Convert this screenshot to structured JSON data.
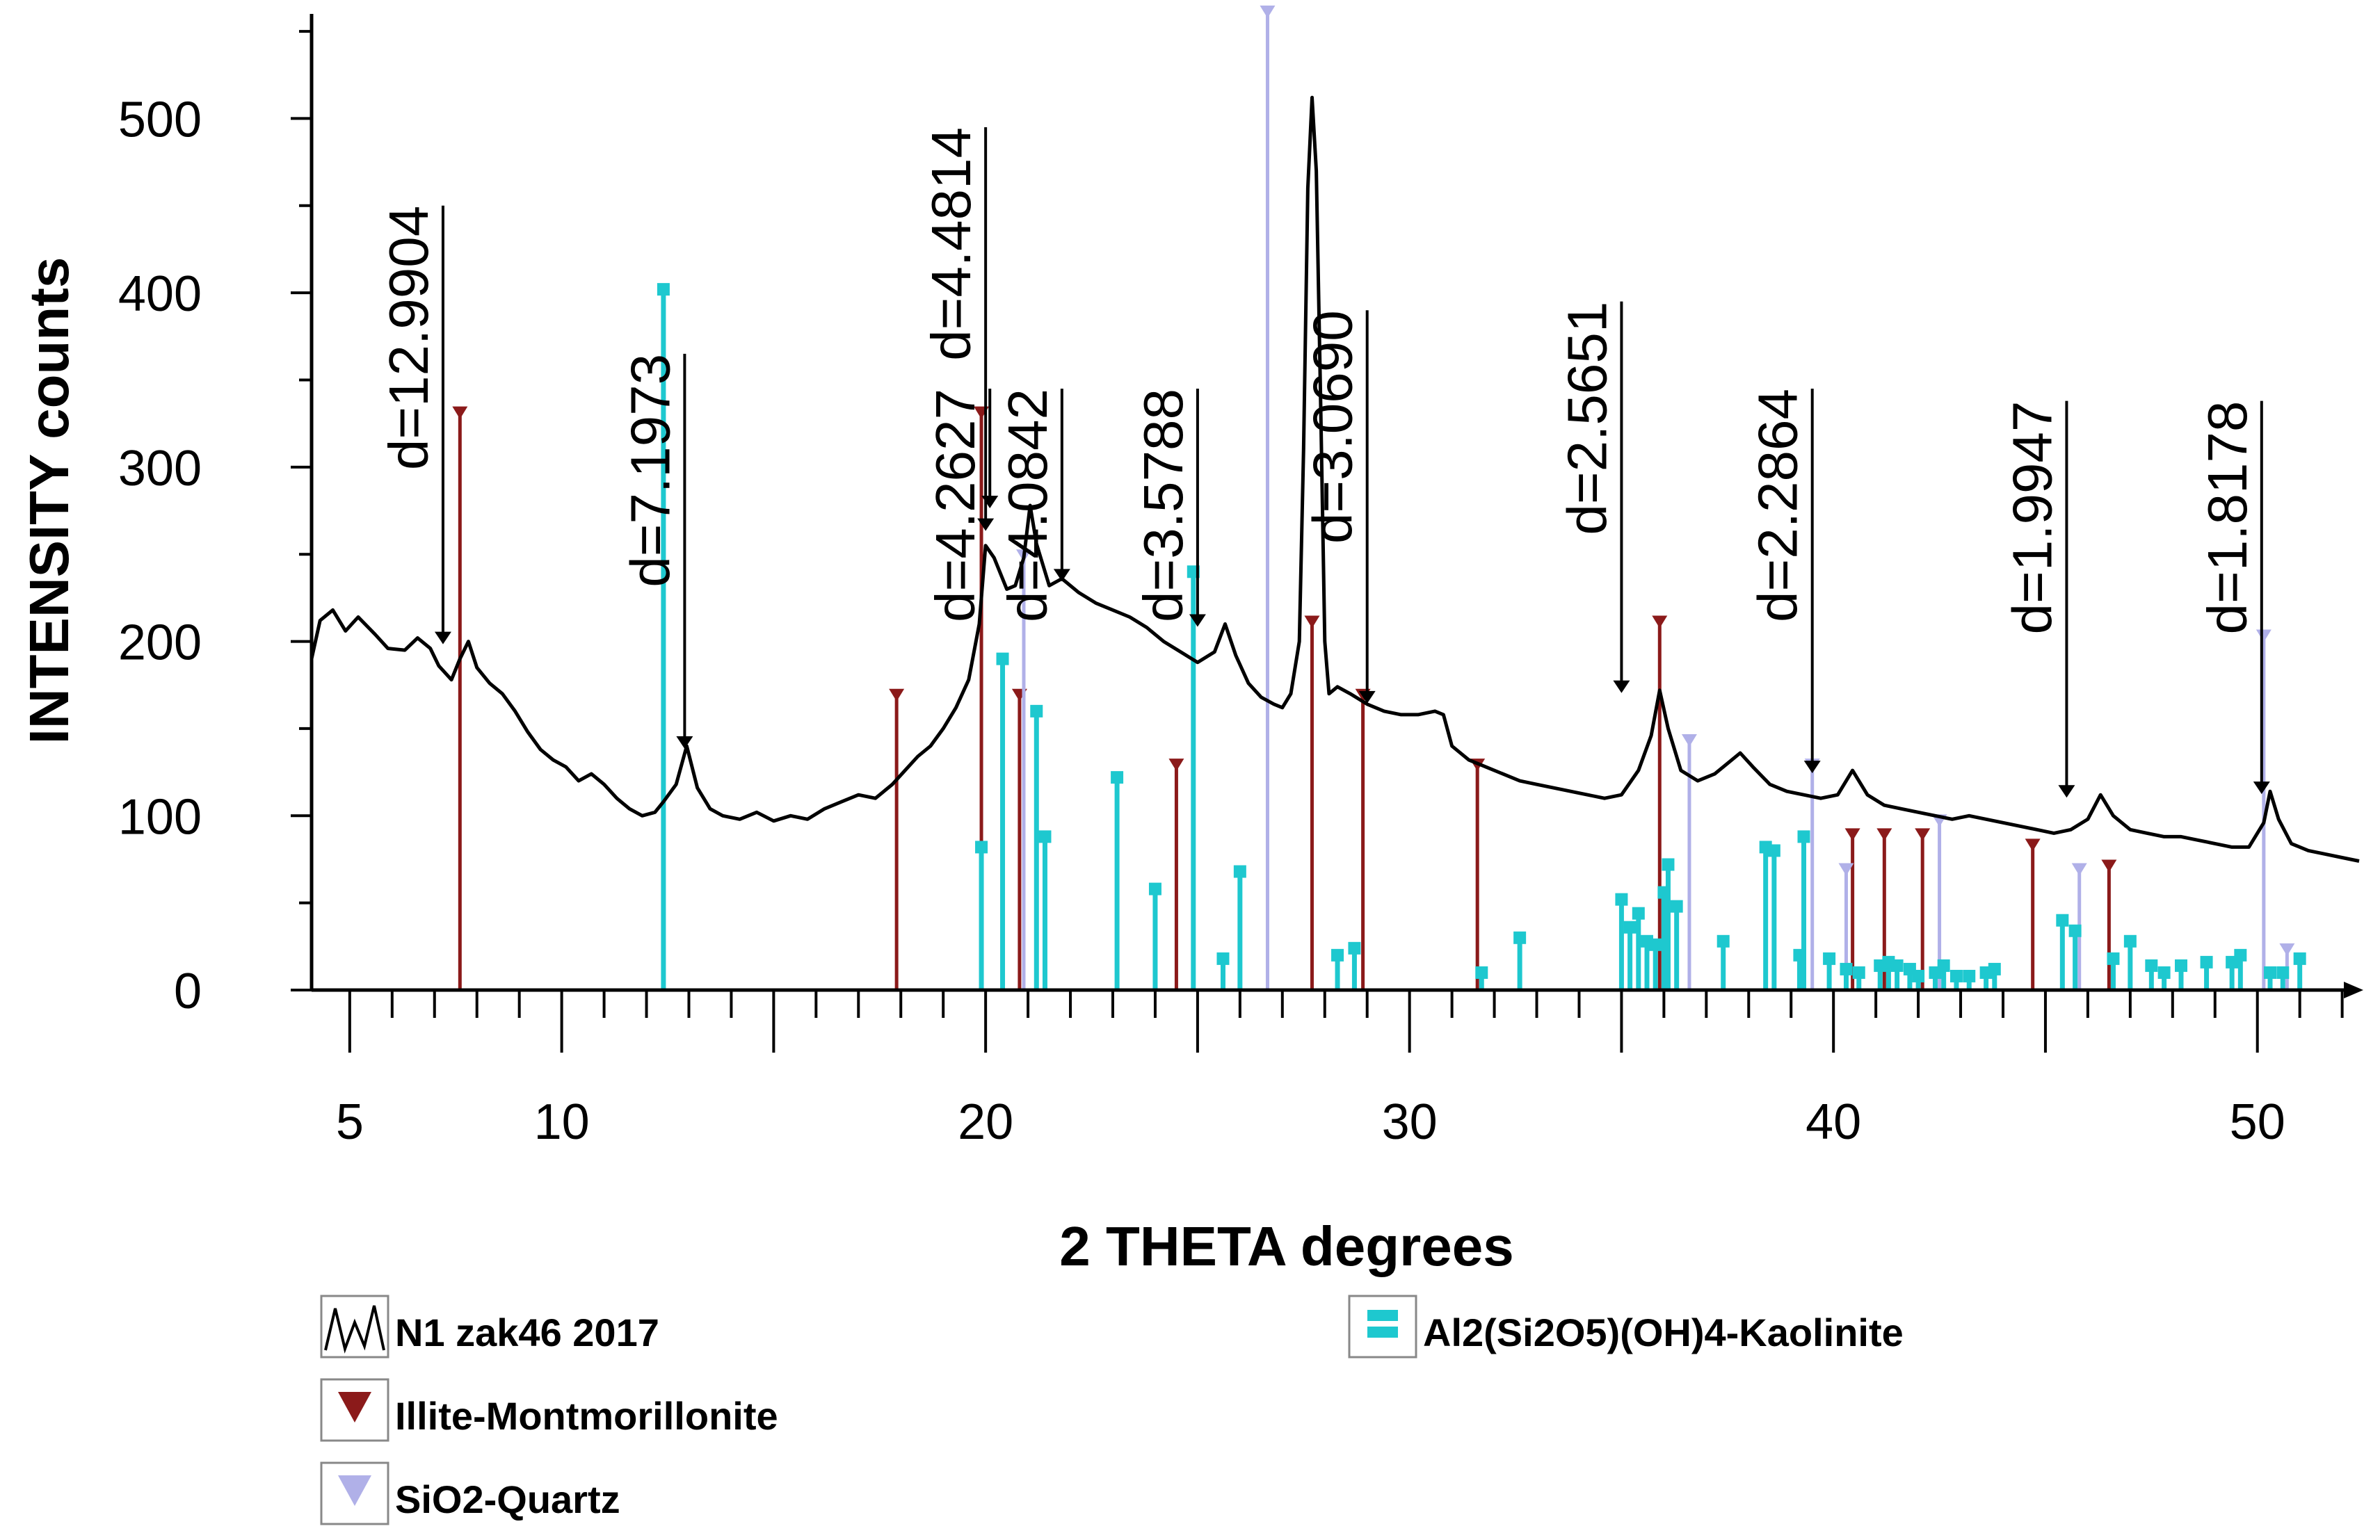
{
  "chart_data": {
    "type": "line",
    "xlabel": "2 THETA degrees",
    "ylabel": "INTENSITY counts",
    "xlim": [
      4.1,
      52.4
    ],
    "ylim": [
      0,
      560
    ],
    "x_ticks": [
      5,
      10,
      20,
      30,
      40,
      50
    ],
    "y_ticks": [
      0,
      100,
      200,
      300,
      400,
      500
    ],
    "pattern": {
      "name": "N1 zak46 2017",
      "color": "#000000",
      "points": [
        [
          4.1,
          190
        ],
        [
          4.3,
          212
        ],
        [
          4.6,
          218
        ],
        [
          4.9,
          206
        ],
        [
          5.2,
          214
        ],
        [
          5.6,
          204
        ],
        [
          5.9,
          196
        ],
        [
          6.3,
          195
        ],
        [
          6.6,
          202
        ],
        [
          6.9,
          196
        ],
        [
          7.1,
          186
        ],
        [
          7.4,
          178
        ],
        [
          7.6,
          190
        ],
        [
          7.8,
          200
        ],
        [
          8.0,
          185
        ],
        [
          8.3,
          176
        ],
        [
          8.6,
          170
        ],
        [
          8.9,
          160
        ],
        [
          9.2,
          148
        ],
        [
          9.5,
          138
        ],
        [
          9.8,
          132
        ],
        [
          10.1,
          128
        ],
        [
          10.4,
          120
        ],
        [
          10.7,
          124
        ],
        [
          11.0,
          118
        ],
        [
          11.3,
          110
        ],
        [
          11.6,
          104
        ],
        [
          11.9,
          100
        ],
        [
          12.2,
          102
        ],
        [
          12.4,
          108
        ],
        [
          12.7,
          118
        ],
        [
          12.95,
          140
        ],
        [
          13.2,
          116
        ],
        [
          13.5,
          104
        ],
        [
          13.8,
          100
        ],
        [
          14.2,
          98
        ],
        [
          14.6,
          102
        ],
        [
          15.0,
          97
        ],
        [
          15.4,
          100
        ],
        [
          15.8,
          98
        ],
        [
          16.2,
          104
        ],
        [
          16.6,
          108
        ],
        [
          17.0,
          112
        ],
        [
          17.4,
          110
        ],
        [
          17.8,
          118
        ],
        [
          18.1,
          126
        ],
        [
          18.4,
          134
        ],
        [
          18.7,
          140
        ],
        [
          19.0,
          150
        ],
        [
          19.3,
          162
        ],
        [
          19.6,
          178
        ],
        [
          19.85,
          210
        ],
        [
          20.0,
          255
        ],
        [
          20.2,
          248
        ],
        [
          20.5,
          230
        ],
        [
          20.7,
          232
        ],
        [
          20.9,
          248
        ],
        [
          21.05,
          278
        ],
        [
          21.2,
          256
        ],
        [
          21.5,
          232
        ],
        [
          21.8,
          236
        ],
        [
          22.2,
          228
        ],
        [
          22.6,
          222
        ],
        [
          23.0,
          218
        ],
        [
          23.4,
          214
        ],
        [
          23.8,
          208
        ],
        [
          24.2,
          200
        ],
        [
          24.6,
          194
        ],
        [
          25.0,
          188
        ],
        [
          25.4,
          194
        ],
        [
          25.65,
          210
        ],
        [
          25.9,
          192
        ],
        [
          26.2,
          176
        ],
        [
          26.5,
          168
        ],
        [
          26.8,
          164
        ],
        [
          27.0,
          162
        ],
        [
          27.2,
          170
        ],
        [
          27.4,
          200
        ],
        [
          27.5,
          310
        ],
        [
          27.6,
          460
        ],
        [
          27.7,
          512
        ],
        [
          27.8,
          470
        ],
        [
          27.9,
          340
        ],
        [
          28.0,
          200
        ],
        [
          28.1,
          170
        ],
        [
          28.3,
          174
        ],
        [
          28.6,
          170
        ],
        [
          29.0,
          164
        ],
        [
          29.4,
          160
        ],
        [
          29.8,
          158
        ],
        [
          30.2,
          158
        ],
        [
          30.6,
          160
        ],
        [
          30.8,
          158
        ],
        [
          31.0,
          140
        ],
        [
          31.4,
          132
        ],
        [
          31.8,
          128
        ],
        [
          32.2,
          124
        ],
        [
          32.6,
          120
        ],
        [
          33.0,
          118
        ],
        [
          33.4,
          116
        ],
        [
          33.8,
          114
        ],
        [
          34.2,
          112
        ],
        [
          34.6,
          110
        ],
        [
          35.0,
          112
        ],
        [
          35.4,
          126
        ],
        [
          35.7,
          146
        ],
        [
          35.9,
          172
        ],
        [
          36.1,
          150
        ],
        [
          36.4,
          126
        ],
        [
          36.8,
          120
        ],
        [
          37.2,
          124
        ],
        [
          37.5,
          130
        ],
        [
          37.8,
          136
        ],
        [
          38.1,
          128
        ],
        [
          38.5,
          118
        ],
        [
          38.9,
          114
        ],
        [
          39.3,
          112
        ],
        [
          39.7,
          110
        ],
        [
          40.1,
          112
        ],
        [
          40.45,
          126
        ],
        [
          40.8,
          112
        ],
        [
          41.2,
          106
        ],
        [
          41.6,
          104
        ],
        [
          42.0,
          102
        ],
        [
          42.4,
          100
        ],
        [
          42.8,
          98
        ],
        [
          43.2,
          100
        ],
        [
          43.6,
          98
        ],
        [
          44.0,
          96
        ],
        [
          44.4,
          94
        ],
        [
          44.8,
          92
        ],
        [
          45.2,
          90
        ],
        [
          45.6,
          92
        ],
        [
          46.0,
          98
        ],
        [
          46.3,
          112
        ],
        [
          46.6,
          100
        ],
        [
          47.0,
          92
        ],
        [
          47.4,
          90
        ],
        [
          47.8,
          88
        ],
        [
          48.2,
          88
        ],
        [
          48.6,
          86
        ],
        [
          49.0,
          84
        ],
        [
          49.4,
          82
        ],
        [
          49.8,
          82
        ],
        [
          50.15,
          96
        ],
        [
          50.3,
          114
        ],
        [
          50.5,
          98
        ],
        [
          50.8,
          84
        ],
        [
          51.2,
          80
        ],
        [
          51.6,
          78
        ],
        [
          52.0,
          76
        ],
        [
          52.4,
          74
        ]
      ]
    },
    "phases": [
      {
        "name": "Illite-Montmorillonite",
        "color": "#8b1a1a",
        "marker": "triangle-down",
        "peaks": [
          [
            7.6,
            330
          ],
          [
            17.9,
            168
          ],
          [
            19.9,
            330
          ],
          [
            20.8,
            168
          ],
          [
            24.5,
            128
          ],
          [
            27.7,
            210
          ],
          [
            28.9,
            168
          ],
          [
            31.6,
            128
          ],
          [
            35.9,
            210
          ],
          [
            40.45,
            88
          ],
          [
            41.2,
            88
          ],
          [
            42.1,
            88
          ],
          [
            44.7,
            82
          ],
          [
            46.5,
            70
          ]
        ]
      },
      {
        "name": "SiO2-Quartz",
        "color": "#b0b0e8",
        "marker": "triangle-down",
        "peaks": [
          [
            20.9,
            248
          ],
          [
            26.65,
            560
          ],
          [
            36.6,
            142
          ],
          [
            39.5,
            128
          ],
          [
            40.3,
            68
          ],
          [
            42.5,
            96
          ],
          [
            45.8,
            68
          ],
          [
            50.15,
            202
          ],
          [
            50.7,
            22
          ]
        ]
      },
      {
        "name": "Al2(Si2O5)(OH)4-Kaolinite",
        "color": "#1ec8cf",
        "marker": "square",
        "peaks": [
          [
            12.4,
            402
          ],
          [
            19.9,
            82
          ],
          [
            20.4,
            190
          ],
          [
            21.2,
            160
          ],
          [
            21.4,
            88
          ],
          [
            23.1,
            122
          ],
          [
            24.0,
            58
          ],
          [
            24.9,
            240
          ],
          [
            25.6,
            18
          ],
          [
            26.0,
            68
          ],
          [
            28.3,
            20
          ],
          [
            28.7,
            24
          ],
          [
            31.7,
            10
          ],
          [
            32.6,
            30
          ],
          [
            35.0,
            52
          ],
          [
            35.2,
            36
          ],
          [
            35.4,
            44
          ],
          [
            35.6,
            28
          ],
          [
            35.8,
            26
          ],
          [
            36.0,
            56
          ],
          [
            36.1,
            72
          ],
          [
            36.3,
            48
          ],
          [
            37.4,
            28
          ],
          [
            38.4,
            82
          ],
          [
            38.6,
            80
          ],
          [
            39.2,
            20
          ],
          [
            39.3,
            88
          ],
          [
            39.9,
            18
          ],
          [
            40.3,
            12
          ],
          [
            40.6,
            10
          ],
          [
            41.1,
            14
          ],
          [
            41.3,
            16
          ],
          [
            41.5,
            14
          ],
          [
            41.8,
            12
          ],
          [
            42.0,
            8
          ],
          [
            42.4,
            10
          ],
          [
            42.6,
            14
          ],
          [
            42.9,
            8
          ],
          [
            43.2,
            8
          ],
          [
            43.6,
            10
          ],
          [
            43.8,
            12
          ],
          [
            45.4,
            40
          ],
          [
            45.7,
            34
          ],
          [
            46.6,
            18
          ],
          [
            47.0,
            28
          ],
          [
            47.5,
            14
          ],
          [
            47.8,
            10
          ],
          [
            48.2,
            14
          ],
          [
            48.8,
            16
          ],
          [
            49.4,
            16
          ],
          [
            49.6,
            20
          ],
          [
            50.3,
            10
          ],
          [
            50.6,
            10
          ],
          [
            51.0,
            18
          ]
        ]
      }
    ],
    "d_spacing_labels": [
      {
        "text": "d=12.9904",
        "x": 7.2,
        "text_y": 450,
        "line_top": 450,
        "line_bottom": 200
      },
      {
        "text": "d=7.1973",
        "x": 12.9,
        "text_y": 365,
        "line_top": 365,
        "line_bottom": 140
      },
      {
        "text": "d=4.4814",
        "x": 20.0,
        "text_y": 495,
        "line_top": 495,
        "line_bottom": 265
      },
      {
        "text": "d=4.2627",
        "x": 20.1,
        "text_y": 345,
        "line_top": 345,
        "line_bottom": 278
      },
      {
        "text": "d=4.0842",
        "x": 21.8,
        "text_y": 345,
        "line_top": 345,
        "line_bottom": 236
      },
      {
        "text": "d=3.5788",
        "x": 25.0,
        "text_y": 345,
        "line_top": 345,
        "line_bottom": 210
      },
      {
        "text": "d=3.0690",
        "x": 29.0,
        "text_y": 390,
        "line_top": 390,
        "line_bottom": 166
      },
      {
        "text": "d=2.5651",
        "x": 35.0,
        "text_y": 395,
        "line_top": 395,
        "line_bottom": 172
      },
      {
        "text": "d=2.2864",
        "x": 39.5,
        "text_y": 345,
        "line_top": 345,
        "line_bottom": 126
      },
      {
        "text": "d=1.9947",
        "x": 45.5,
        "text_y": 338,
        "line_top": 338,
        "line_bottom": 112
      },
      {
        "text": "d=1.8178",
        "x": 50.1,
        "text_y": 338,
        "line_top": 338,
        "line_bottom": 114
      }
    ],
    "legend": [
      {
        "label": "N1 zak46 2017",
        "color": "#000000",
        "swatch": "line"
      },
      {
        "label": "Al2(Si2O5)(OH)4-Kaolinite",
        "color": "#1ec8cf",
        "swatch": "square"
      },
      {
        "label": "Illite-Montmorillonite",
        "color": "#8b1a1a",
        "swatch": "triangle"
      },
      {
        "label": "SiO2-Quartz",
        "color": "#b0b0e8",
        "swatch": "triangle"
      }
    ]
  }
}
